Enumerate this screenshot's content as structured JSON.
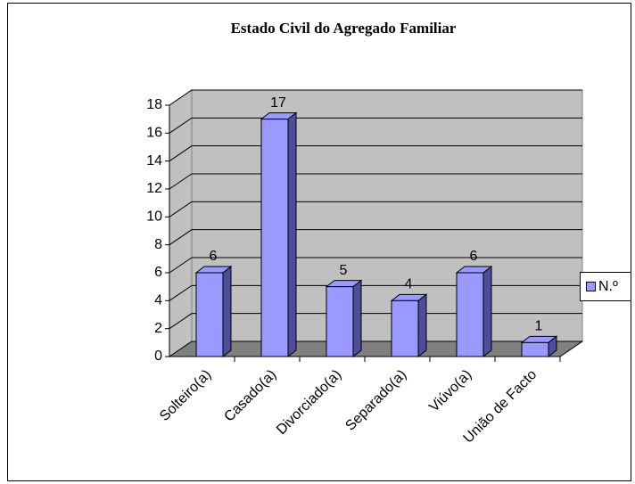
{
  "chart_data": {
    "type": "bar",
    "title": "Estado Civil do Agregado Familiar",
    "categories": [
      "Solteiro(a)",
      "Casado(a)",
      "Divorciado(a)",
      "Separado(a)",
      "Viúvo(a)",
      "União de Facto"
    ],
    "series": [
      {
        "name": "N.º",
        "color": "#9999ff",
        "values": [
          6,
          17,
          5,
          4,
          6,
          1
        ]
      }
    ],
    "ylim": [
      0,
      18
    ],
    "yticks": [
      0,
      2,
      4,
      6,
      8,
      10,
      12,
      14,
      16,
      18
    ],
    "grid": true,
    "legend": "right"
  }
}
